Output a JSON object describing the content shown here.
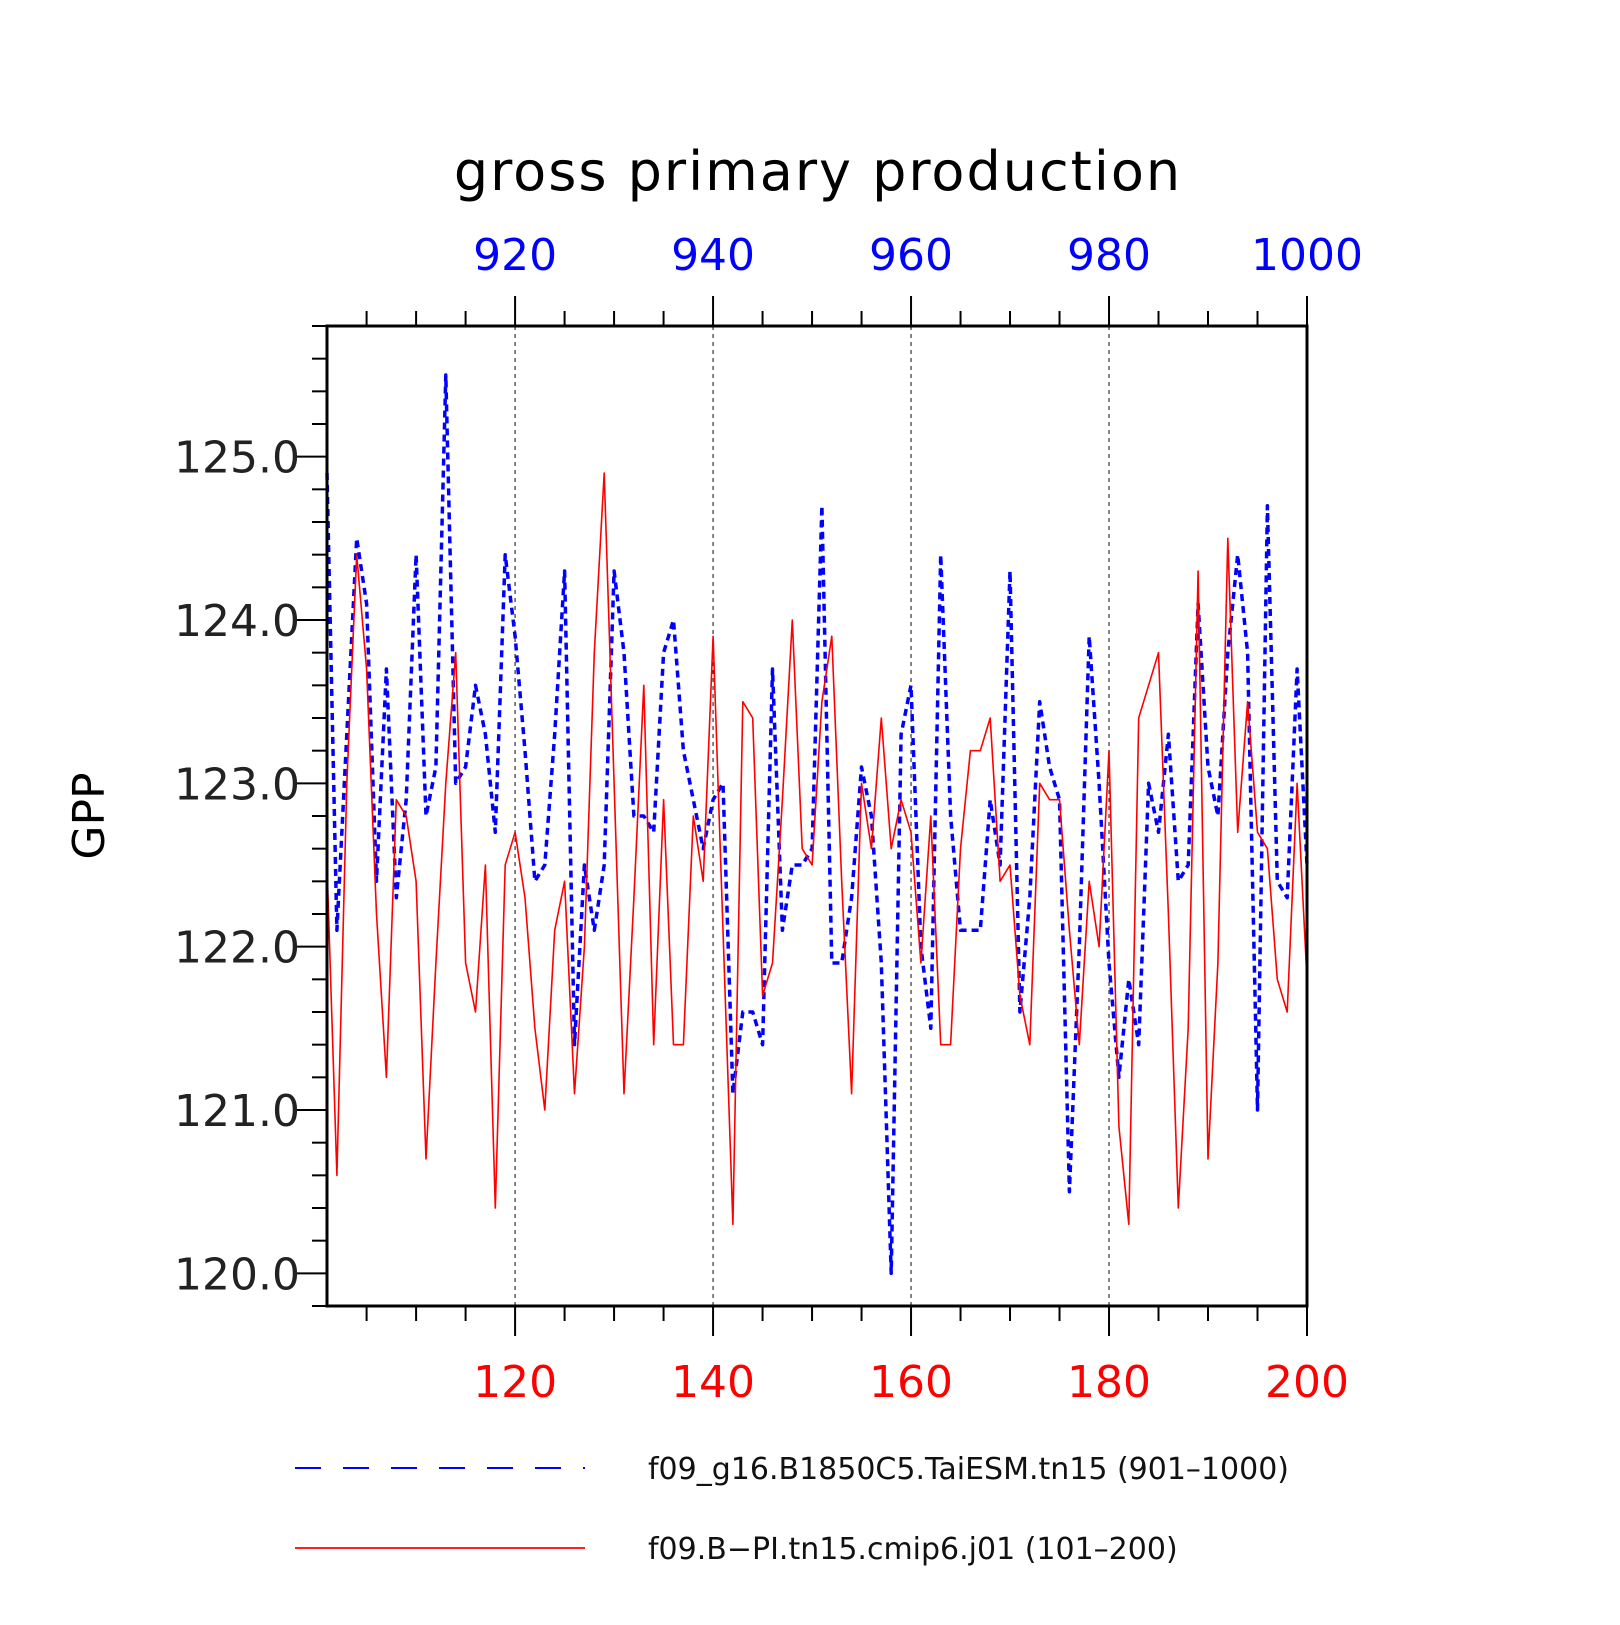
{
  "chart_data": {
    "type": "line",
    "title": "gross primary production",
    "ylabel": "GPP",
    "ylim": [
      119.8,
      125.8
    ],
    "yticks": [
      "120.0",
      "121.0",
      "122.0",
      "123.0",
      "124.0",
      "125.0"
    ],
    "grid": "vertical dashed at major x ticks",
    "legend_position": "bottom",
    "colors": {
      "top_axis": "#0000ff",
      "bottom_axis": "#ff0000"
    },
    "bottom_axis": {
      "range": [
        101,
        200
      ],
      "ticks": [
        "120",
        "140",
        "160",
        "180",
        "200"
      ]
    },
    "top_axis": {
      "range": [
        901,
        1000
      ],
      "ticks": [
        "920",
        "940",
        "960",
        "980",
        "1000"
      ]
    },
    "series": [
      {
        "name": "f09_g16.B1850C5.TaiESM.tn15 (901–1000)",
        "axis": "top",
        "color": "#0000ff",
        "style": "dashed",
        "x": [
          901,
          902,
          903,
          904,
          905,
          906,
          907,
          908,
          909,
          910,
          911,
          912,
          913,
          914,
          915,
          916,
          917,
          918,
          919,
          920,
          921,
          922,
          923,
          924,
          925,
          926,
          927,
          928,
          929,
          930,
          931,
          932,
          933,
          934,
          935,
          936,
          937,
          938,
          939,
          940,
          941,
          942,
          943,
          944,
          945,
          946,
          947,
          948,
          949,
          950,
          951,
          952,
          953,
          954,
          955,
          956,
          957,
          958,
          959,
          960,
          961,
          962,
          963,
          964,
          965,
          966,
          967,
          968,
          969,
          970,
          971,
          972,
          973,
          974,
          975,
          976,
          977,
          978,
          979,
          980,
          981,
          982,
          983,
          984,
          985,
          986,
          987,
          988,
          989,
          990,
          991,
          992,
          993,
          994,
          995,
          996,
          997,
          998,
          999,
          1000
        ],
        "values": [
          124.9,
          122.1,
          123.3,
          124.5,
          124.1,
          122.4,
          123.7,
          122.3,
          122.9,
          124.4,
          122.8,
          123.1,
          125.5,
          123.0,
          123.1,
          123.6,
          123.3,
          122.7,
          124.4,
          123.9,
          123.2,
          122.4,
          122.5,
          123.3,
          124.3,
          121.4,
          122.5,
          122.1,
          122.5,
          124.3,
          123.8,
          122.8,
          122.8,
          122.7,
          123.8,
          124.0,
          123.2,
          122.9,
          122.6,
          122.9,
          123.0,
          121.1,
          121.6,
          121.6,
          121.4,
          123.7,
          122.1,
          122.5,
          122.5,
          122.6,
          124.7,
          121.9,
          121.9,
          122.3,
          123.1,
          122.8,
          121.9,
          120.0,
          123.3,
          123.6,
          122.0,
          121.5,
          124.4,
          122.8,
          122.1,
          122.1,
          122.1,
          122.9,
          122.5,
          124.3,
          121.6,
          122.3,
          123.5,
          123.1,
          122.9,
          120.5,
          122.0,
          123.9,
          123.0,
          121.9,
          121.2,
          121.8,
          121.4,
          123.0,
          122.7,
          123.3,
          122.4,
          122.5,
          124.1,
          123.1,
          122.8,
          123.8,
          124.4,
          123.8,
          121.0,
          124.7,
          122.4,
          122.3,
          123.7,
          122.5
        ]
      },
      {
        "name": "f09.B−PI.tn15.cmip6.j01 (101–200)",
        "axis": "bottom",
        "color": "#ff0000",
        "style": "solid",
        "x": [
          101,
          102,
          103,
          104,
          105,
          106,
          107,
          108,
          109,
          110,
          111,
          112,
          113,
          114,
          115,
          116,
          117,
          118,
          119,
          120,
          121,
          122,
          123,
          124,
          125,
          126,
          127,
          128,
          129,
          130,
          131,
          132,
          133,
          134,
          135,
          136,
          137,
          138,
          139,
          140,
          141,
          142,
          143,
          144,
          145,
          146,
          147,
          148,
          149,
          150,
          151,
          152,
          153,
          154,
          155,
          156,
          157,
          158,
          159,
          160,
          161,
          162,
          163,
          164,
          165,
          166,
          167,
          168,
          169,
          170,
          171,
          172,
          173,
          174,
          175,
          176,
          177,
          178,
          179,
          180,
          181,
          182,
          183,
          184,
          185,
          186,
          187,
          188,
          189,
          190,
          191,
          192,
          193,
          194,
          195,
          196,
          197,
          198,
          199,
          200
        ],
        "values": [
          122.5,
          120.6,
          123.0,
          124.4,
          123.7,
          122.2,
          121.2,
          122.9,
          122.8,
          122.4,
          120.7,
          121.9,
          123.0,
          123.8,
          121.9,
          121.6,
          122.5,
          120.4,
          122.5,
          122.7,
          122.3,
          121.5,
          121.0,
          122.1,
          122.4,
          121.1,
          122.0,
          123.8,
          124.9,
          123.0,
          121.1,
          122.3,
          123.6,
          121.4,
          122.9,
          121.4,
          121.4,
          122.8,
          122.4,
          123.9,
          122.1,
          120.3,
          123.5,
          123.4,
          121.7,
          121.9,
          122.9,
          124.0,
          122.6,
          122.5,
          123.5,
          123.9,
          122.4,
          121.1,
          123.0,
          122.6,
          123.4,
          122.6,
          122.9,
          122.7,
          121.9,
          122.8,
          121.4,
          121.4,
          122.6,
          123.2,
          123.2,
          123.4,
          122.4,
          122.5,
          121.7,
          121.4,
          123.0,
          122.9,
          122.9,
          122.1,
          121.4,
          122.4,
          122.0,
          123.2,
          120.9,
          120.3,
          123.4,
          123.6,
          123.8,
          122.2,
          120.4,
          121.5,
          124.3,
          120.7,
          121.9,
          124.5,
          122.7,
          123.5,
          122.7,
          122.6,
          121.8,
          121.6,
          123.0,
          121.8
        ]
      }
    ]
  }
}
